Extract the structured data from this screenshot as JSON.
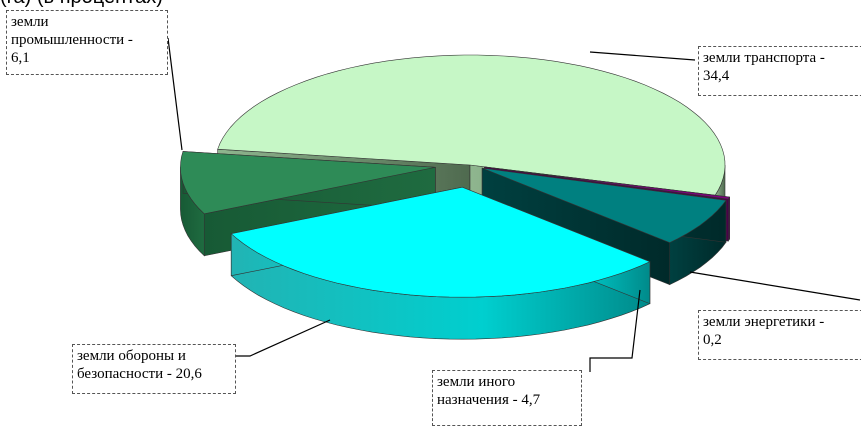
{
  "header": {
    "fragment": "(га) (в процентах)"
  },
  "chart_data": {
    "type": "pie",
    "title": "",
    "slices": [
      {
        "label": "земли промышленности - 6,1",
        "value": 6.1,
        "color": "#2e8b57"
      },
      {
        "label": "земли транспорта - 34,4",
        "value": 34.4,
        "color": "#c6f7c6"
      },
      {
        "label": "земли энергетики - 0,2",
        "value": 0.2,
        "color": "#800080"
      },
      {
        "label": "земли иного назначения - 4,7",
        "value": 4.7,
        "color": "#008080"
      },
      {
        "label": "земли обороны и безопасности - 20,6",
        "value": 20.6,
        "color": "#00ffff"
      }
    ],
    "style": "3d exploded pie"
  },
  "labels": {
    "industry": "земли\nпромышленности -\n6,1",
    "transport": "земли транспорта -\n34,4",
    "energy": "земли энергетики -\n0,2",
    "other": "земли иного\nназначения - 4,7",
    "defense": "земли обороны и\nбезопасности - 20,6"
  }
}
